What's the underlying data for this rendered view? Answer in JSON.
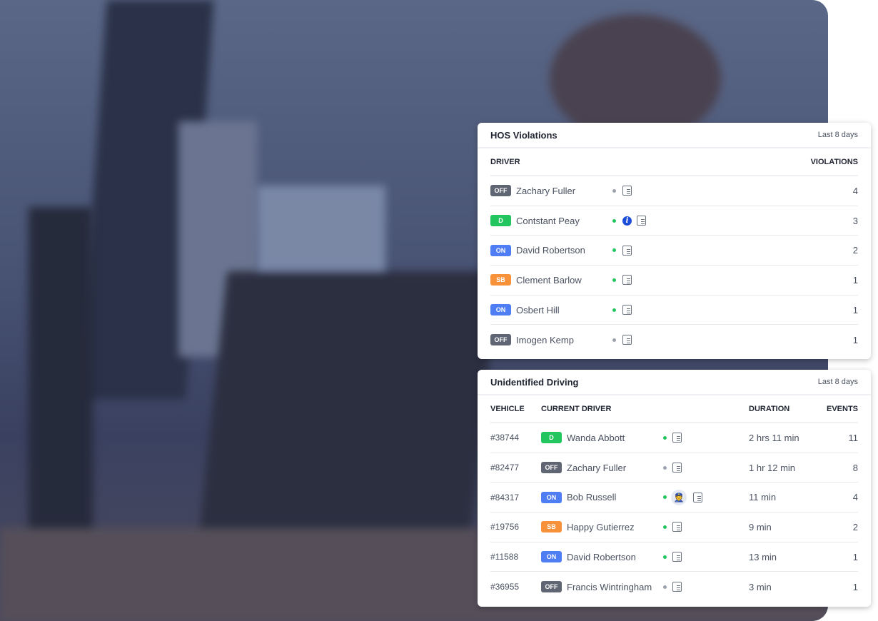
{
  "colors": {
    "OFF": "#5f6572",
    "D": "#22c55e",
    "ON": "#4f7df3",
    "SB": "#f7913a",
    "online": "#22c55e",
    "offline": "#9ca3af"
  },
  "hos": {
    "title": "HOS Violations",
    "range": "Last 8 days",
    "col_driver": "DRIVER",
    "col_violations": "VIOLATIONS",
    "rows": [
      {
        "status": "OFF",
        "name": "Zachary Fuller",
        "online": false,
        "info": false,
        "violations": "4"
      },
      {
        "status": "D",
        "name": "Contstant Peay",
        "online": true,
        "info": true,
        "violations": "3"
      },
      {
        "status": "ON",
        "name": "David Robertson",
        "online": true,
        "info": false,
        "violations": "2"
      },
      {
        "status": "SB",
        "name": "Clement Barlow",
        "online": true,
        "info": false,
        "violations": "1"
      },
      {
        "status": "ON",
        "name": "Osbert Hill",
        "online": true,
        "info": false,
        "violations": "1"
      },
      {
        "status": "OFF",
        "name": "Imogen Kemp",
        "online": false,
        "info": false,
        "violations": "1"
      }
    ]
  },
  "unid": {
    "title": "Unidentified Driving",
    "range": "Last 8 days",
    "col_vehicle": "VEHICLE",
    "col_driver": "CURRENT DRIVER",
    "col_duration": "DURATION",
    "col_events": "EVENTS",
    "rows": [
      {
        "vehicle": "#38744",
        "status": "D",
        "name": "Wanda Abbott",
        "online": true,
        "avatar": false,
        "duration": "2 hrs 11 min",
        "events": "11"
      },
      {
        "vehicle": "#82477",
        "status": "OFF",
        "name": "Zachary Fuller",
        "online": false,
        "avatar": false,
        "duration": "1 hr 12 min",
        "events": "8"
      },
      {
        "vehicle": "#84317",
        "status": "ON",
        "name": "Bob Russell",
        "online": true,
        "avatar": true,
        "duration": "11 min",
        "events": "4"
      },
      {
        "vehicle": "#19756",
        "status": "SB",
        "name": "Happy Gutierrez",
        "online": true,
        "avatar": false,
        "duration": "9 min",
        "events": "2"
      },
      {
        "vehicle": "#11588",
        "status": "ON",
        "name": "David Robertson",
        "online": true,
        "avatar": false,
        "duration": "13 min",
        "events": "1"
      },
      {
        "vehicle": "#36955",
        "status": "OFF",
        "name": "Francis Wintringham",
        "online": false,
        "avatar": false,
        "duration": "3 min",
        "events": "1"
      }
    ]
  }
}
